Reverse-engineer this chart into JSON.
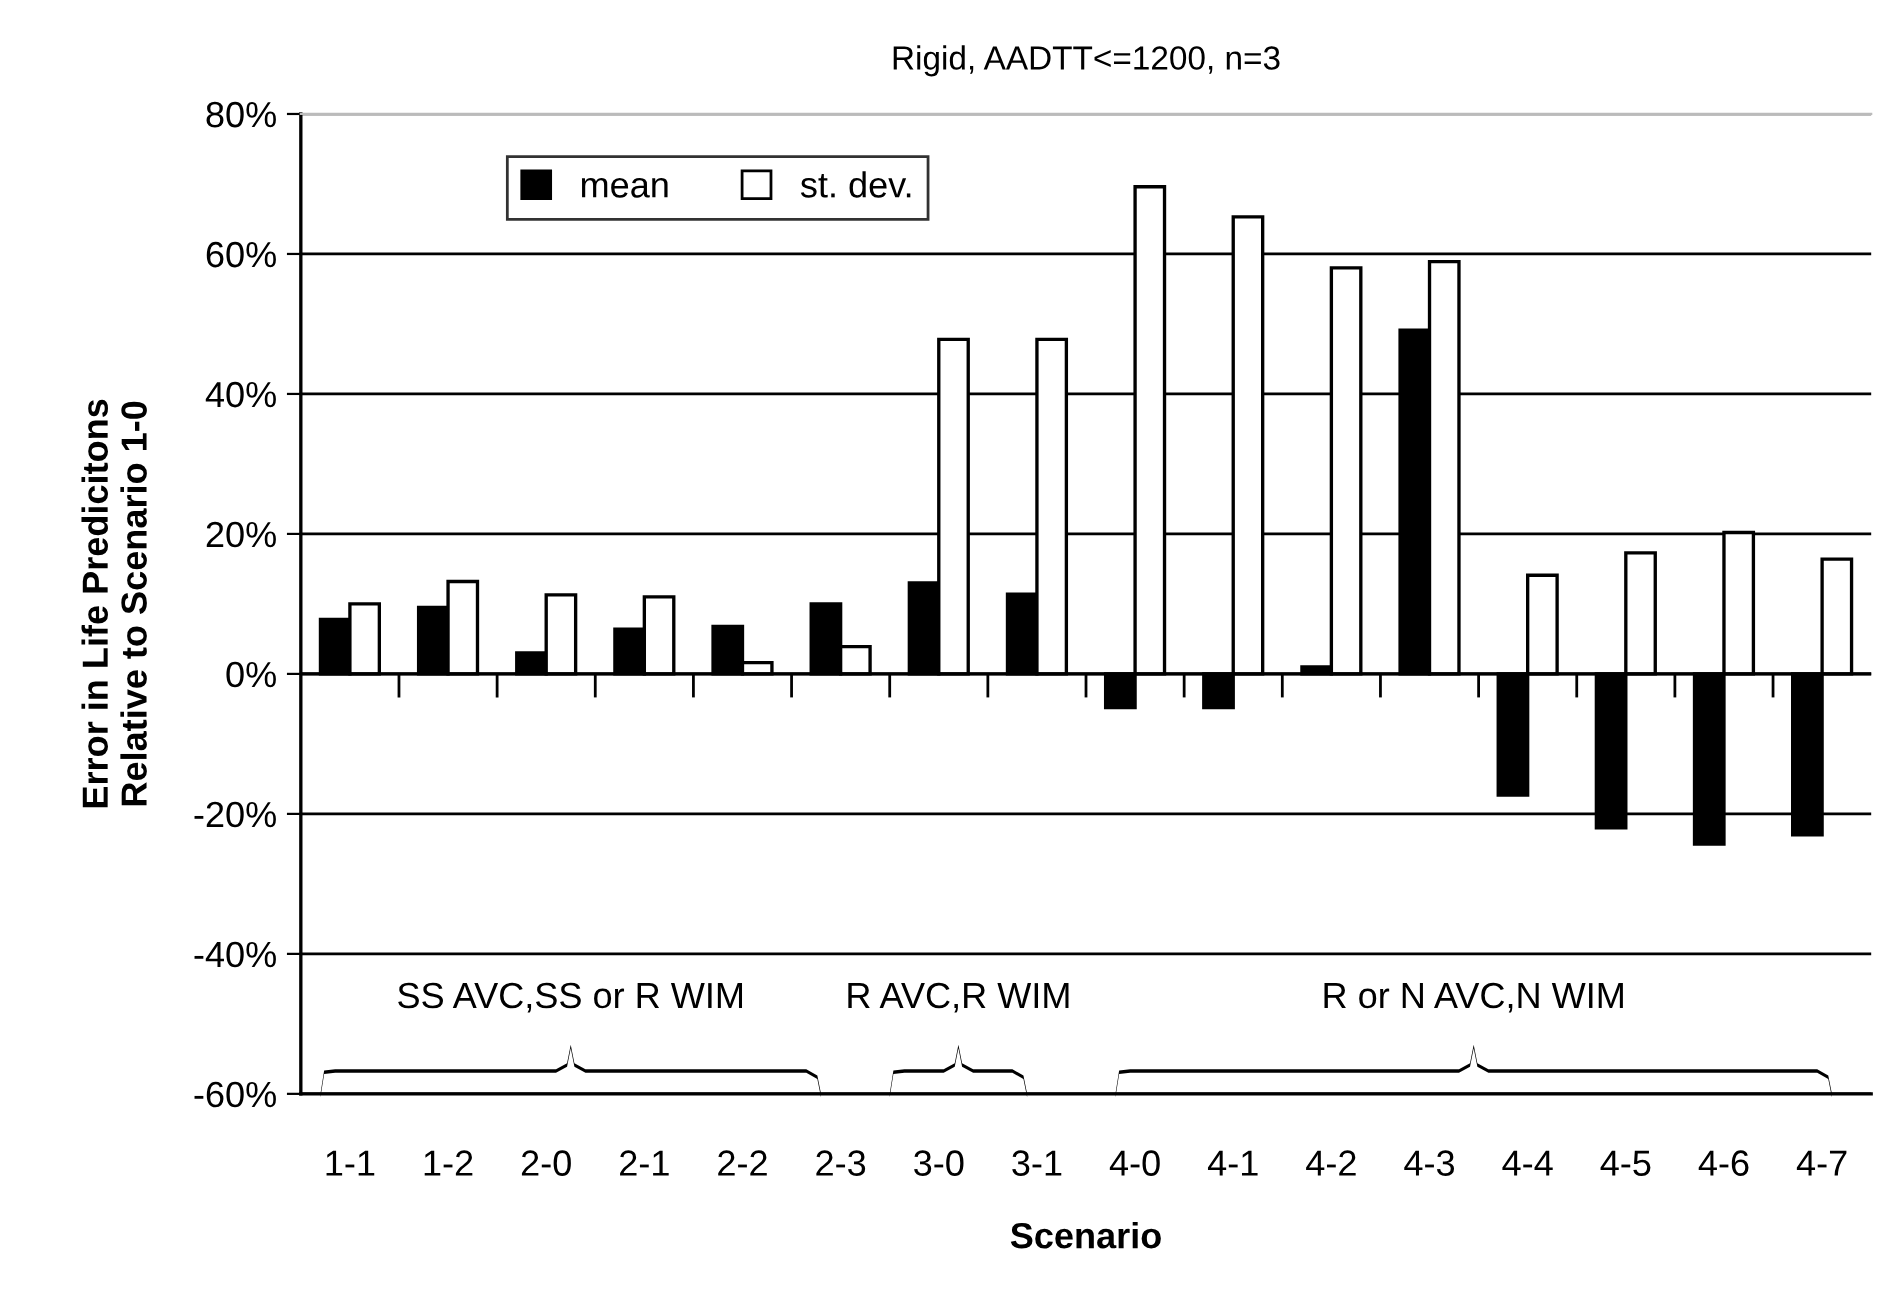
{
  "chart_data": {
    "type": "bar",
    "title": "Rigid, AADTT<=1200, n=3",
    "xlabel": "Scenario",
    "ylabel": "Error in Life Predicitons\nRelative to Scenario 1-0",
    "categories": [
      "1-1",
      "1-2",
      "2-0",
      "2-1",
      "2-2",
      "2-3",
      "3-0",
      "3-1",
      "4-0",
      "4-1",
      "4-2",
      "4-3",
      "4-4",
      "4-5",
      "4-6",
      "4-7"
    ],
    "series": [
      {
        "name": "mean",
        "color": "#000000",
        "values": [
          7.8,
          9.5,
          3.0,
          6.4,
          6.8,
          10.0,
          13.0,
          11.4,
          -4.8,
          -4.8,
          1.0,
          49.1,
          -17.3,
          -22.0,
          -24.3,
          -23.0
        ]
      },
      {
        "name": "st. dev.",
        "color": "#ffffff",
        "values": [
          10.0,
          13.2,
          11.3,
          11.0,
          1.6,
          3.9,
          47.8,
          47.8,
          69.6,
          65.3,
          58.0,
          58.9,
          14.1,
          17.3,
          20.2,
          16.4
        ]
      }
    ],
    "ylim": [
      -60,
      80
    ],
    "yticks": [
      {
        "value": -60,
        "label": "-60%"
      },
      {
        "value": -40,
        "label": "-40%"
      },
      {
        "value": -20,
        "label": "-20%"
      },
      {
        "value": 0,
        "label": "0%"
      },
      {
        "value": 20,
        "label": "20%"
      },
      {
        "value": 40,
        "label": "40%"
      },
      {
        "value": 60,
        "label": "60%"
      },
      {
        "value": 80,
        "label": "80%"
      }
    ],
    "grid": "y",
    "legend": "top left",
    "annotations": [
      "SS AVC,SS or R WIM",
      "R AVC,R WIM",
      "R or N AVC,N WIM"
    ]
  }
}
